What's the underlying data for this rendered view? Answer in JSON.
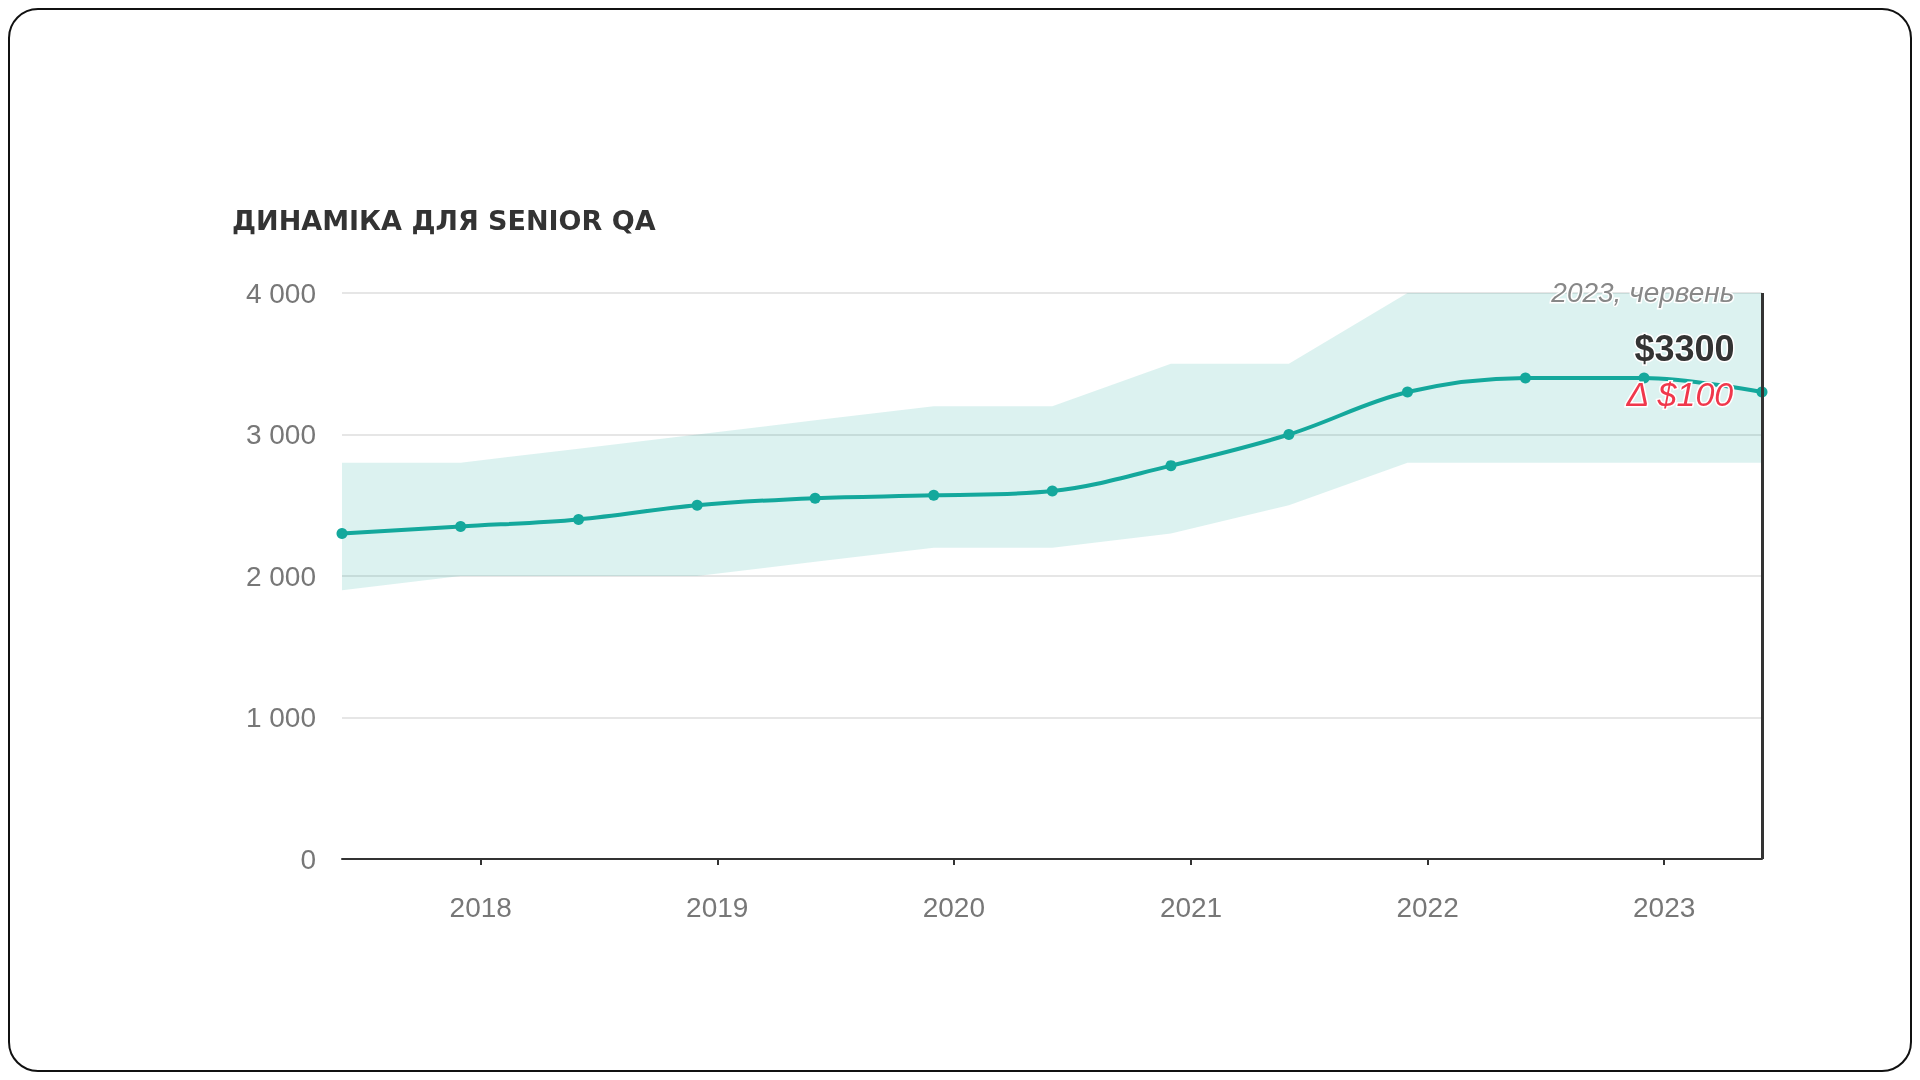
{
  "chart_data": {
    "type": "line",
    "title": "ДИНАМІКА ДЛЯ SENIOR QA",
    "x": [
      "2017-06",
      "2017-12",
      "2018-06",
      "2018-12",
      "2019-06",
      "2019-12",
      "2020-06",
      "2020-12",
      "2021-06",
      "2021-12",
      "2022-06",
      "2022-12",
      "2023-06"
    ],
    "series": [
      {
        "color": "#14a89c",
        "values": [
          2300,
          2350,
          2400,
          2500,
          2550,
          2570,
          2600,
          2780,
          3000,
          3300,
          3400,
          3400,
          3300
        ],
        "lower": [
          1900,
          2000,
          2000,
          2000,
          2100,
          2200,
          2200,
          2300,
          2500,
          2800,
          2800,
          2800,
          2800
        ],
        "upper": [
          2800,
          2800,
          2900,
          3000,
          3100,
          3200,
          3200,
          3500,
          3500,
          4000,
          4000,
          4000,
          4000
        ]
      }
    ],
    "xlim": [
      "2017-06",
      "2023-06"
    ],
    "xticks": [
      "2018",
      "2019",
      "2020",
      "2021",
      "2022",
      "2023"
    ],
    "ylim": [
      0,
      4000
    ],
    "yticks": [
      0,
      1000,
      2000,
      3000,
      4000
    ],
    "grid": "y",
    "marker": "circle",
    "line_style": "solid",
    "ref_lines": [
      {
        "axis": "x",
        "value": "2023-06",
        "color": "#333333"
      }
    ],
    "annotations": [
      "2023, червень",
      "$3300",
      "Δ $100"
    ]
  }
}
